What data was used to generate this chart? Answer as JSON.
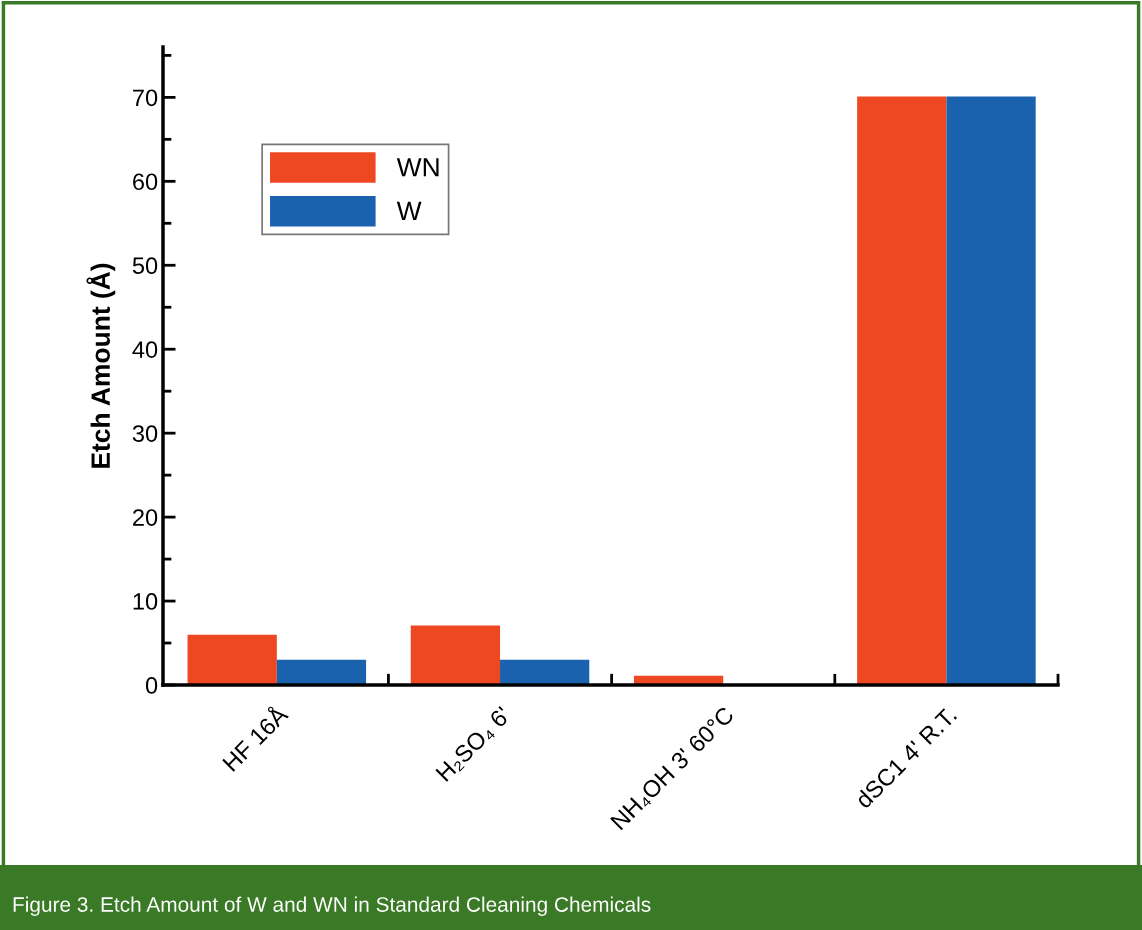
{
  "chart_data": {
    "type": "bar",
    "ylabel": "Etch Amount (Å)",
    "categories": [
      "HF 16Å",
      "H₂SO₄ 6'",
      "NH₄OH 3' 60°C",
      "dSC1 4' R.T."
    ],
    "series": [
      {
        "name": "WN",
        "color": "#ee4823",
        "values": [
          6.0,
          7.1,
          1.1,
          70.1
        ]
      },
      {
        "name": "W",
        "color": "#1a62ae",
        "values": [
          3.0,
          3.0,
          0,
          70.1
        ]
      }
    ],
    "ylim": [
      0,
      76
    ],
    "yticks": [
      0,
      10,
      20,
      30,
      40,
      50,
      60,
      70
    ],
    "grid": false,
    "legend": "top left",
    "annotations": [
      "Figure 3. Etch Amount of W and WN in Standard Cleaning Chemicals"
    ]
  }
}
